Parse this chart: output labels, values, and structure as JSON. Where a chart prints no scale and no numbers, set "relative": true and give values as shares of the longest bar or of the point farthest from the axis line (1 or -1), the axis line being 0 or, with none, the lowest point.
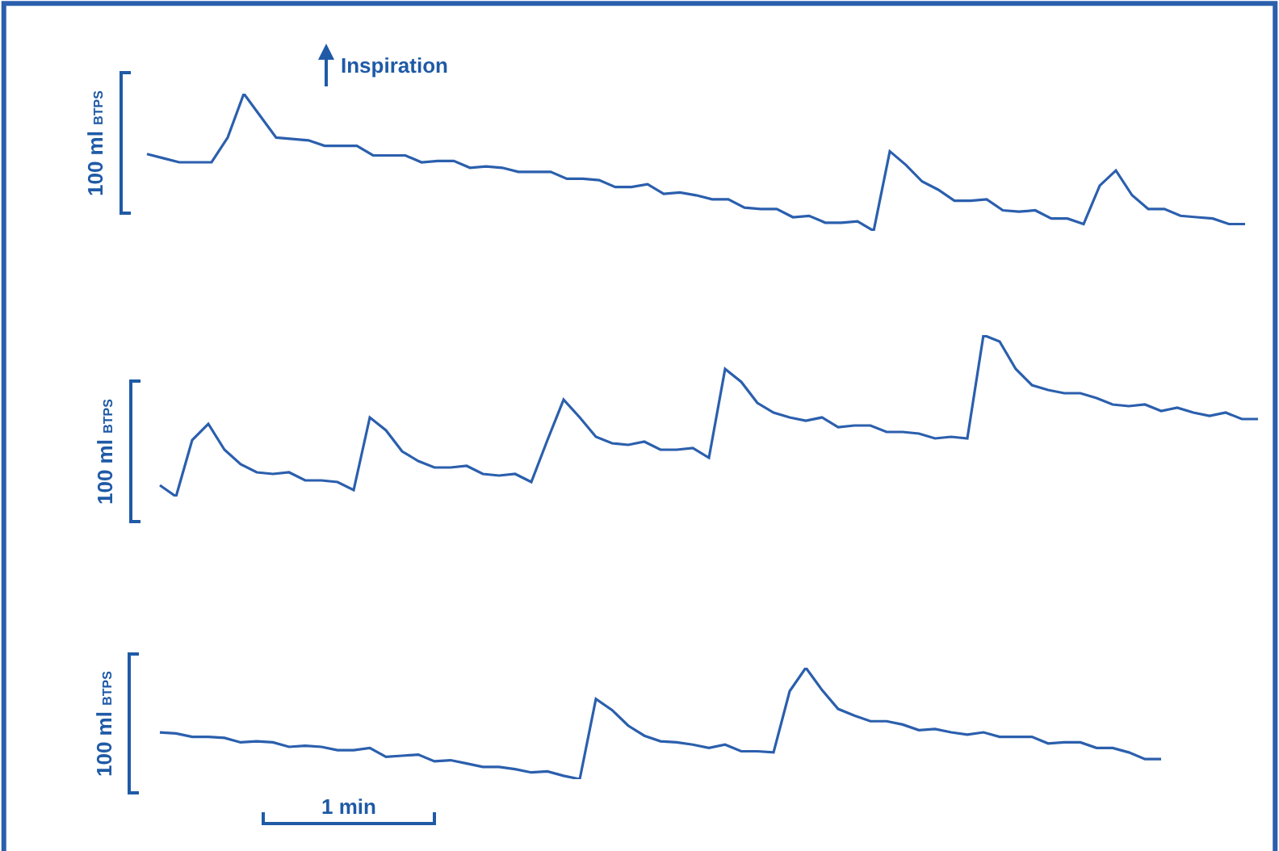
{
  "chart_data": [
    {
      "type": "line",
      "relative": true,
      "ylabel": "100 ml $_{BTPS}$",
      "color": "#2b5fad",
      "annotations": [
        "Inspiration"
      ],
      "categories": [
        null,
        null,
        null,
        null,
        null,
        null,
        null,
        null,
        null,
        null,
        null,
        null,
        null,
        null,
        null,
        null,
        null,
        null,
        null,
        null,
        null,
        null,
        null,
        null,
        null,
        null,
        null,
        null,
        null,
        null,
        null,
        null,
        null,
        null,
        null,
        null,
        null,
        null,
        null,
        null,
        null,
        null,
        null,
        null,
        null,
        null,
        null,
        null,
        null,
        null,
        null,
        null,
        null,
        null,
        null,
        null,
        null,
        null,
        null,
        null,
        null,
        null,
        null,
        null,
        null,
        null,
        null,
        null,
        null
      ],
      "values": [
        0.56,
        0.53,
        0.5,
        0.5,
        0.5,
        0.68,
        1.0,
        0.84,
        0.68,
        0.67,
        0.66,
        0.62,
        0.62,
        0.62,
        0.55,
        0.55,
        0.55,
        0.5,
        0.51,
        0.51,
        0.46,
        0.47,
        0.46,
        0.43,
        0.43,
        0.43,
        0.38,
        0.38,
        0.37,
        0.32,
        0.32,
        0.34,
        0.27,
        0.28,
        0.26,
        0.23,
        0.23,
        0.17,
        0.16,
        0.16,
        0.1,
        0.11,
        0.06,
        0.06,
        0.07,
        0.0,
        0.58,
        0.48,
        0.36,
        0.3,
        0.22,
        0.22,
        0.23,
        0.15,
        0.14,
        0.15,
        0.09,
        0.09,
        0.05,
        0.33,
        0.44,
        0.26,
        0.16,
        0.16,
        0.11,
        0.1,
        0.09,
        0.05,
        0.05
      ]
    },
    {
      "type": "line",
      "relative": true,
      "ylabel": "100 ml $_{BTPS}$",
      "color": "#2b5fad",
      "categories": [
        null,
        null,
        null,
        null,
        null,
        null,
        null,
        null,
        null,
        null,
        null,
        null,
        null,
        null,
        null,
        null,
        null,
        null,
        null,
        null,
        null,
        null,
        null,
        null,
        null,
        null,
        null,
        null,
        null,
        null,
        null,
        null,
        null,
        null,
        null,
        null,
        null,
        null,
        null,
        null,
        null,
        null,
        null,
        null,
        null,
        null,
        null,
        null,
        null,
        null,
        null,
        null,
        null,
        null,
        null,
        null,
        null,
        null,
        null,
        null,
        null,
        null,
        null,
        null,
        null,
        null,
        null,
        null,
        null
      ],
      "values": [
        0.07,
        0.0,
        0.35,
        0.45,
        0.29,
        0.2,
        0.15,
        0.14,
        0.15,
        0.1,
        0.1,
        0.09,
        0.04,
        0.49,
        0.41,
        0.28,
        0.22,
        0.18,
        0.18,
        0.19,
        0.14,
        0.13,
        0.14,
        0.09,
        0.35,
        0.6,
        0.49,
        0.37,
        0.33,
        0.32,
        0.34,
        0.29,
        0.29,
        0.3,
        0.24,
        0.79,
        0.71,
        0.58,
        0.52,
        0.49,
        0.47,
        0.49,
        0.43,
        0.44,
        0.44,
        0.4,
        0.4,
        0.39,
        0.36,
        0.37,
        0.36,
        1.0,
        0.96,
        0.79,
        0.69,
        0.66,
        0.64,
        0.64,
        0.61,
        0.57,
        0.56,
        0.57,
        0.53,
        0.55,
        0.52,
        0.5,
        0.52,
        0.48,
        0.48
      ]
    },
    {
      "type": "line",
      "relative": true,
      "ylabel": "100 ml $_{BTPS}$",
      "color": "#2b5fad",
      "annotations": [
        "1 min"
      ],
      "categories": [
        null,
        null,
        null,
        null,
        null,
        null,
        null,
        null,
        null,
        null,
        null,
        null,
        null,
        null,
        null,
        null,
        null,
        null,
        null,
        null,
        null,
        null,
        null,
        null,
        null,
        null,
        null,
        null,
        null,
        null,
        null,
        null,
        null,
        null,
        null,
        null,
        null,
        null,
        null,
        null,
        null,
        null,
        null,
        null,
        null,
        null,
        null,
        null,
        null,
        null,
        null,
        null,
        null,
        null,
        null,
        null,
        null,
        null,
        null,
        null,
        null,
        null,
        null
      ],
      "values": [
        0.42,
        0.41,
        0.38,
        0.38,
        0.37,
        0.33,
        0.34,
        0.33,
        0.29,
        0.3,
        0.29,
        0.26,
        0.26,
        0.28,
        0.2,
        0.21,
        0.22,
        0.16,
        0.17,
        0.14,
        0.11,
        0.11,
        0.09,
        0.06,
        0.07,
        0.03,
        0.0,
        0.72,
        0.62,
        0.48,
        0.39,
        0.34,
        0.33,
        0.31,
        0.28,
        0.31,
        0.25,
        0.25,
        0.24,
        0.79,
        1.0,
        0.8,
        0.63,
        0.57,
        0.52,
        0.52,
        0.49,
        0.44,
        0.45,
        0.42,
        0.4,
        0.42,
        0.38,
        0.38,
        0.38,
        0.32,
        0.33,
        0.33,
        0.28,
        0.28,
        0.24,
        0.18,
        0.18
      ]
    }
  ]
}
